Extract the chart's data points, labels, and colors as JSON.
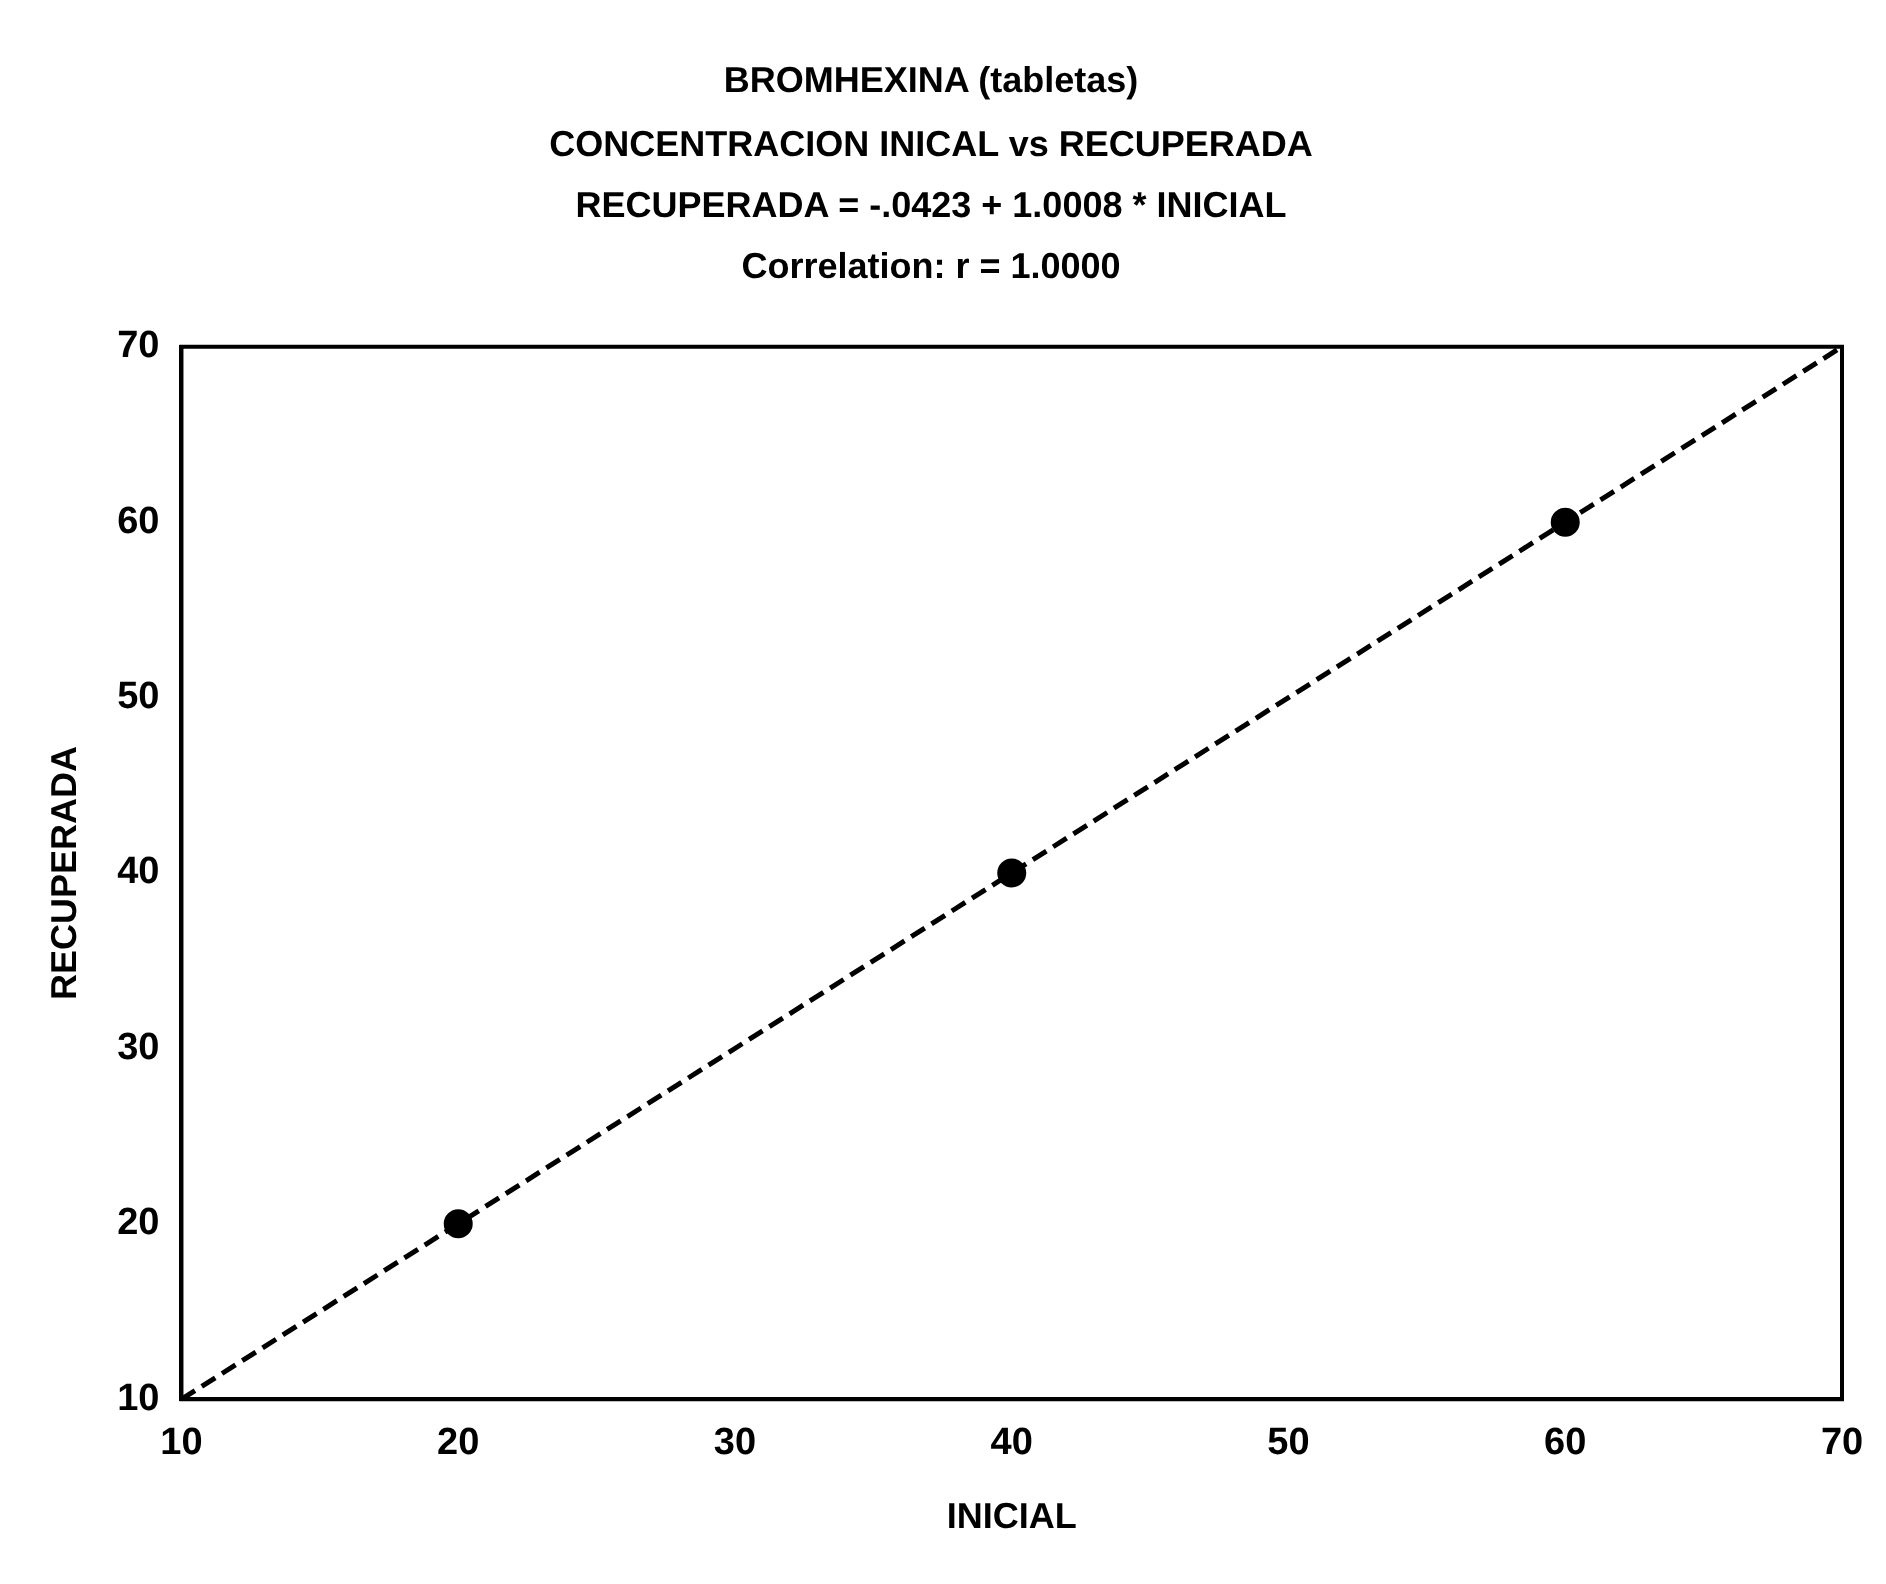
{
  "chart_data": {
    "type": "scatter",
    "title": "BROMHEXINA (tabletas)",
    "subtitle": "CONCENTRACION INICAL vs RECUPERADA",
    "annotations": [
      "RECUPERADA = -.0423 + 1.0008 * INICIAL",
      "Correlation: r = 1.0000"
    ],
    "xlabel": "INICIAL",
    "ylabel": "RECUPERADA",
    "xlim": [
      10,
      70
    ],
    "ylim": [
      10,
      70
    ],
    "xticks": [
      10,
      20,
      30,
      40,
      50,
      60,
      70
    ],
    "yticks": [
      10,
      20,
      30,
      40,
      50,
      60,
      70
    ],
    "grid": false,
    "legend": false,
    "series": [
      {
        "color": "#000000",
        "marker": "circle",
        "x": [
          20,
          40,
          60
        ],
        "values": [
          20,
          40,
          60
        ]
      },
      {
        "type": "line",
        "color": "#000000",
        "line_style": "dashed",
        "marker": "none",
        "x": [
          10,
          70
        ],
        "values": [
          10,
          70
        ]
      }
    ]
  }
}
